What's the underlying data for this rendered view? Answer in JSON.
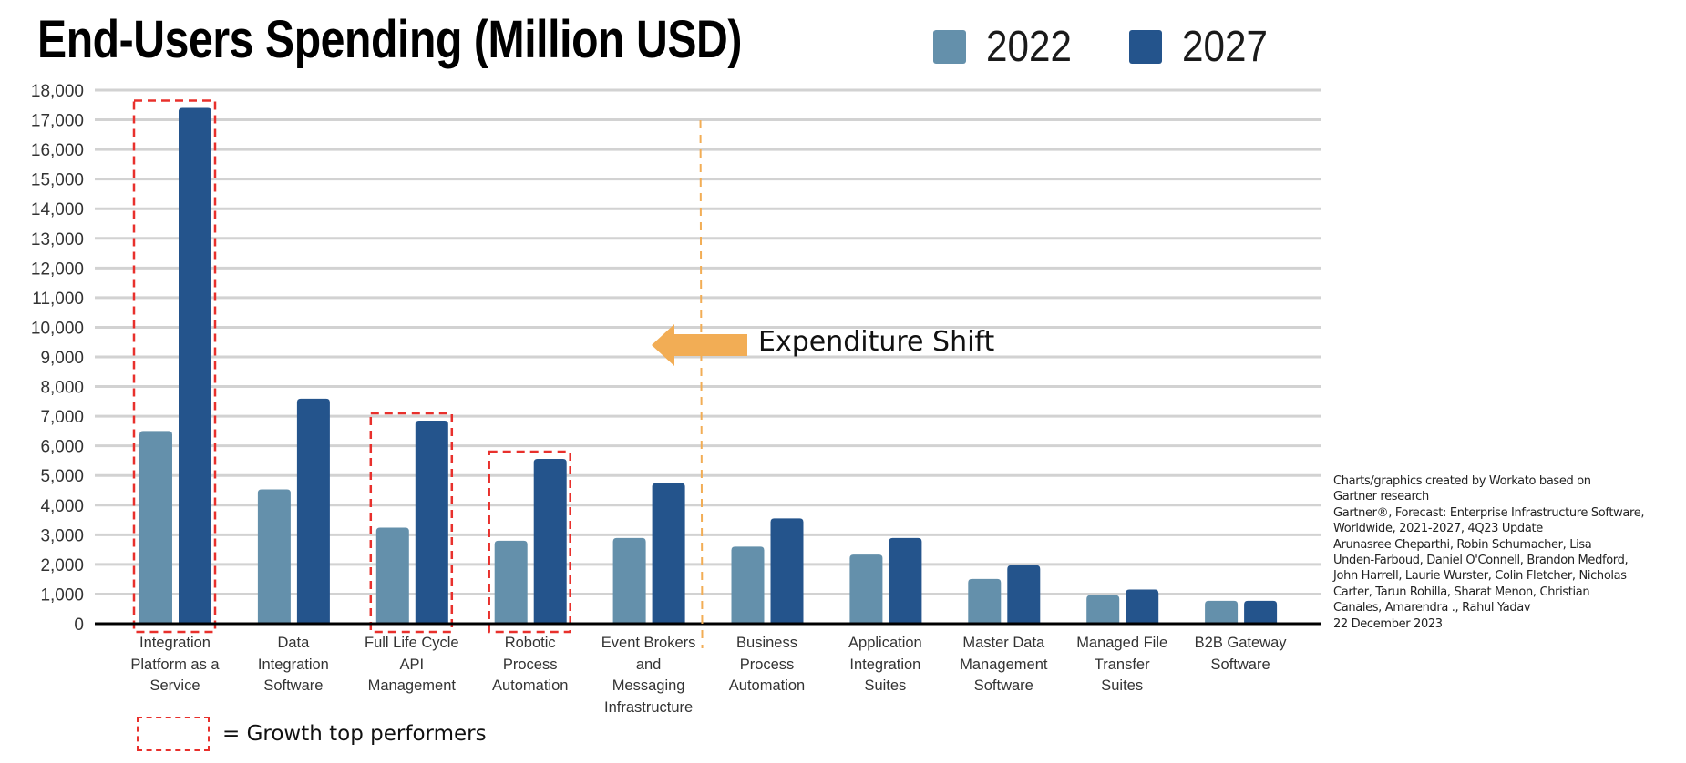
{
  "chart_data": {
    "type": "bar",
    "title": "End-Users Spending (Million USD)",
    "xlabel": "",
    "ylabel": "",
    "ylim": [
      0,
      18000
    ],
    "ytick_step": 1000,
    "grid": true,
    "legend_position": "top-right",
    "categories": [
      "Integration\nPlatform as a\nService",
      "Data\nIntegration\nSoftware",
      "Full Life Cycle\nAPI\nManagement",
      "Robotic\nProcess\nAutomation",
      "Event Brokers\nand\nMessaging\nInfrastructure",
      "Business\nProcess\nAutomation",
      "Application\nIntegration\nSuites",
      "Master Data\nManagement\nSoftware",
      "Managed File\nTransfer\nSuites",
      "B2B Gateway\nSoftware"
    ],
    "yticks": [
      "0",
      "1,000",
      "2,000",
      "3,000",
      "4,000",
      "5,000",
      "6,000",
      "7,000",
      "8,000",
      "9,000",
      "10,000",
      "11,000",
      "12,000",
      "13,000",
      "14,000",
      "15,000",
      "16,000",
      "17,000",
      "18,000"
    ],
    "series": [
      {
        "name": "2022",
        "color": "#6490AB",
        "values": [
          6500,
          4530,
          3240,
          2800,
          2890,
          2600,
          2330,
          1510,
          960,
          770
        ]
      },
      {
        "name": "2027",
        "color": "#24548C",
        "values": [
          17400,
          7590,
          6850,
          5560,
          4740,
          3550,
          2890,
          1970,
          1150,
          770
        ]
      }
    ],
    "annotations": {
      "highlighted_categories": [
        0,
        2,
        3
      ],
      "highlight_color": "#E8302C",
      "highlight_legend": "= Growth top performers",
      "shift_divider_after_category": 4,
      "shift_label": "Expenditure Shift",
      "shift_color": "#F2AD55"
    }
  },
  "footnote": [
    "Charts/graphics created by Workato based on",
    "Gartner research",
    "Gartner®, Forecast: Enterprise Infrastructure Software,",
    "Worldwide, 2021-2027, 4Q23 Update",
    "Arunasree Cheparthi, Robin Schumacher, Lisa",
    "Unden-Farboud, Daniel O'Connell, Brandon Medford,",
    "John Harrell, Laurie Wurster, Colin Fletcher, Nicholas",
    "Carter, Tarun Rohilla, Sharat Menon, Christian",
    "Canales, Amarendra ., Rahul Yadav",
    "22 December 2023"
  ]
}
